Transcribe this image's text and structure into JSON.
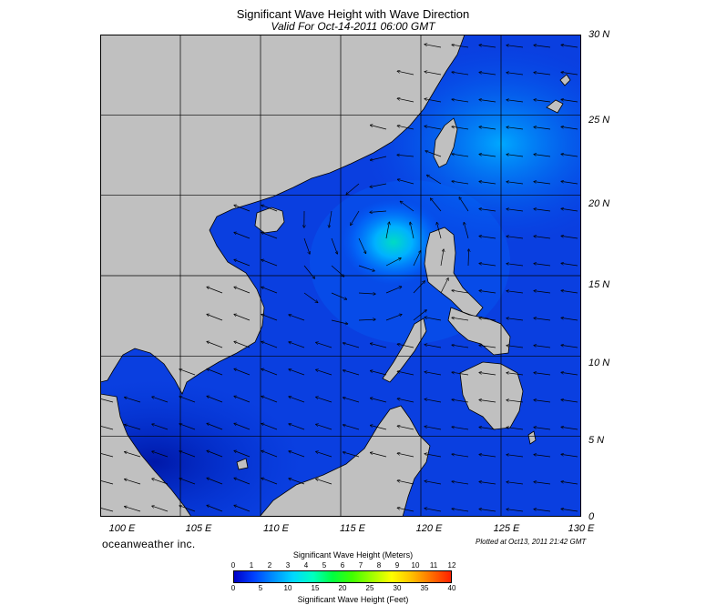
{
  "title": "Significant Wave Height with Wave Direction",
  "subtitle": "Valid For Oct-14-2011 06:00 GMT",
  "lat_labels": [
    "30 N",
    "25 N",
    "20 N",
    "15 N",
    "10 N",
    "5 N",
    "0"
  ],
  "lon_labels": [
    "100 E",
    "105 E",
    "110 E",
    "115 E",
    "120 E",
    "125 E",
    "130 E"
  ],
  "brand": "oceanweather inc.",
  "plotted": "Plotted at Oct13, 2011 21:42 GMT",
  "scale": {
    "meters_title": "Significant Wave Height (Meters)",
    "feet_title": "Significant Wave Height (Feet)",
    "meters_ticks": [
      "0",
      "1",
      "2",
      "3",
      "4",
      "5",
      "6",
      "7",
      "8",
      "9",
      "10",
      "11",
      "12"
    ],
    "feet_ticks": [
      "0",
      "5",
      "10",
      "15",
      "20",
      "25",
      "30",
      "35",
      "40"
    ],
    "colors": [
      "#0000c8",
      "#0040ff",
      "#0090ff",
      "#00d8ff",
      "#00ffc0",
      "#00ff40",
      "#40ff00",
      "#a0ff00",
      "#ffff00",
      "#ffc000",
      "#ff7000",
      "#ff2000"
    ]
  },
  "map": {
    "extent": {
      "lon": [
        100,
        130
      ],
      "lat": [
        0,
        30
      ]
    },
    "land_color": "#c0c0c0",
    "sea_color": "#0a3fe0",
    "storm_center": {
      "lon": 117.5,
      "lat": 17.5,
      "hs_m": 3.5
    }
  }
}
